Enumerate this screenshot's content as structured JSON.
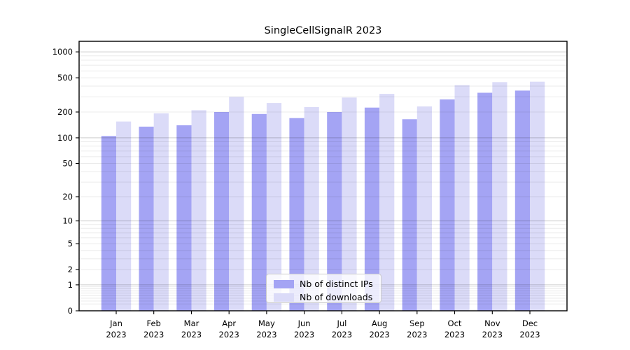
{
  "chart_data": {
    "type": "bar",
    "title": "SingleCellSignalR 2023",
    "categories": [
      "Jan 2023",
      "Feb 2023",
      "Mar 2023",
      "Apr 2023",
      "May 2023",
      "Jun 2023",
      "Jul 2023",
      "Aug 2023",
      "Sep 2023",
      "Oct 2023",
      "Nov 2023",
      "Dec 2023"
    ],
    "series": [
      {
        "name": "Nb of distinct IPs",
        "color": "#a4a4f4",
        "values": [
          105,
          135,
          140,
          200,
          190,
          170,
          200,
          225,
          165,
          280,
          335,
          355
        ]
      },
      {
        "name": "Nb of downloads",
        "color": "#dbdbf8",
        "values": [
          155,
          193,
          210,
          300,
          255,
          228,
          295,
          325,
          232,
          410,
          445,
          450
        ]
      }
    ],
    "xlabel": "",
    "ylabel": "",
    "y_scale": "log10(value+1)",
    "y_ticks": [
      0,
      1,
      2,
      5,
      10,
      20,
      50,
      100,
      200,
      500,
      1000
    ],
    "y_major_gridlines": [
      1,
      10,
      100,
      1000
    ],
    "ylim": [
      0,
      1325
    ],
    "grid": true,
    "legend_position": "lower center"
  },
  "colors": {
    "axis": "#000000",
    "text": "#000000",
    "grid_major": "rgba(0,0,0,0.20)",
    "grid_minor": "rgba(0,0,0,0.08)",
    "legend_border": "#cccccc",
    "legend_background": "rgba(255,255,255,0.8)"
  }
}
